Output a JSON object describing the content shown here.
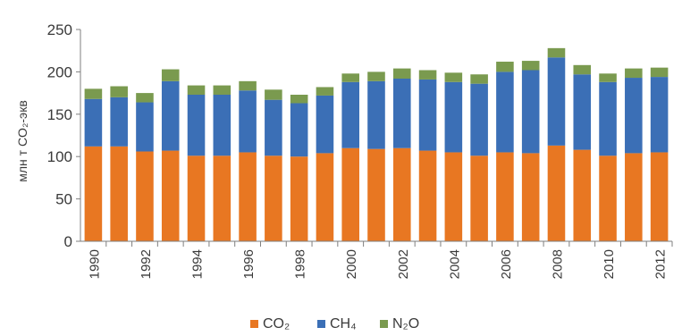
{
  "chart_data": {
    "type": "bar",
    "stacked": true,
    "ylabel": "млн т CO₂-экв",
    "ylim": [
      0,
      250
    ],
    "yticks": [
      0,
      50,
      100,
      150,
      200,
      250
    ],
    "x": [
      1990,
      1991,
      1992,
      1993,
      1994,
      1995,
      1996,
      1997,
      1998,
      1999,
      2000,
      2001,
      2002,
      2003,
      2004,
      2005,
      2006,
      2007,
      2008,
      2009,
      2010,
      2011,
      2012
    ],
    "xtick_labels": [
      "1990",
      "1992",
      "1994",
      "1996",
      "1998",
      "2000",
      "2002",
      "2004",
      "2006",
      "2008",
      "2010",
      "2012"
    ],
    "series": [
      {
        "name": "CO₂",
        "color": "#e87722",
        "values": [
          112,
          112,
          106,
          107,
          101,
          101,
          105,
          101,
          100,
          104,
          110,
          109,
          110,
          107,
          105,
          101,
          105,
          104,
          113,
          108,
          101,
          104,
          105
        ]
      },
      {
        "name": "CH₄",
        "color": "#3b6fb6",
        "values": [
          56,
          58,
          58,
          82,
          72,
          72,
          73,
          66,
          63,
          68,
          78,
          80,
          82,
          84,
          83,
          85,
          95,
          98,
          104,
          89,
          87,
          89,
          89
        ]
      },
      {
        "name": "N₂O",
        "color": "#7a9a4f",
        "values": [
          12,
          13,
          11,
          14,
          11,
          11,
          11,
          12,
          10,
          10,
          10,
          11,
          12,
          11,
          11,
          11,
          12,
          11,
          11,
          11,
          10,
          11,
          11
        ]
      }
    ],
    "grid": false,
    "legend_position": "bottom"
  }
}
